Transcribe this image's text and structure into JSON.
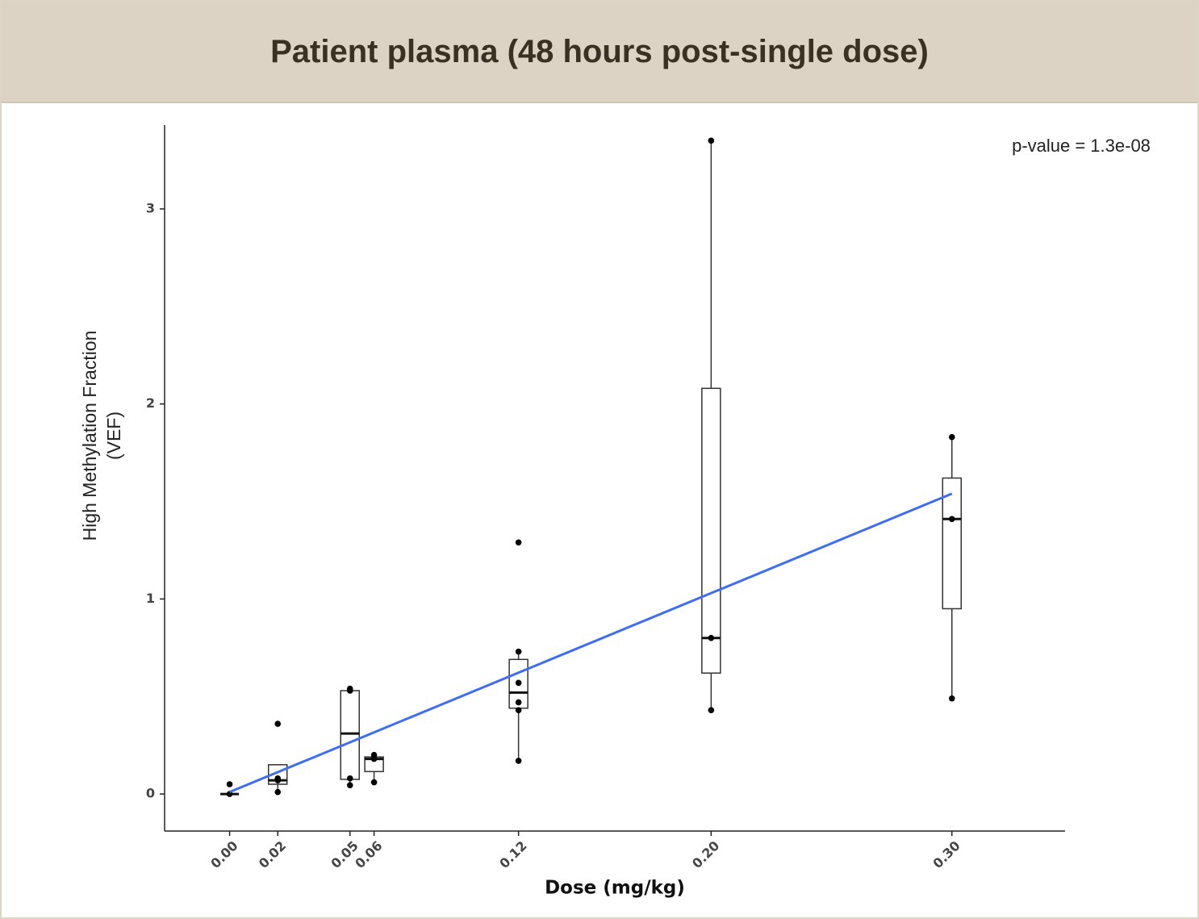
{
  "chart_data": {
    "type": "box",
    "title": "Patient plasma (48 hours post-single dose)",
    "xlabel": "Dose (mg/kg)",
    "ylabel": [
      "High Methylation Fraction",
      "(VEF)"
    ],
    "annotation": "p-value = 1.3e-08",
    "xlim": [
      -0.027,
      0.347
    ],
    "ylim": [
      -0.19,
      3.43
    ],
    "xticks": [
      {
        "value": 0.0,
        "label": "0.00"
      },
      {
        "value": 0.02,
        "label": "0.02"
      },
      {
        "value": 0.05,
        "label": "0.05"
      },
      {
        "value": 0.06,
        "label": "0.06"
      },
      {
        "value": 0.12,
        "label": "0.12"
      },
      {
        "value": 0.2,
        "label": "0.20"
      },
      {
        "value": 0.3,
        "label": "0.30"
      }
    ],
    "yticks": [
      0,
      1,
      2,
      3
    ],
    "box_color": "#333333",
    "point_color": "#000000",
    "boxes": [
      {
        "x": 0.0,
        "min": 0,
        "q1": 0,
        "median": 0,
        "q3": 0,
        "max": 0,
        "points": [
          0.05,
          0
        ]
      },
      {
        "x": 0.02,
        "min": 0.01,
        "q1": 0.05,
        "median": 0.07,
        "q3": 0.15,
        "max": 0.15,
        "points": [
          0.36,
          0.08,
          0.07,
          0.01
        ]
      },
      {
        "x": 0.05,
        "min": 0.045,
        "q1": 0.075,
        "median": 0.31,
        "q3": 0.53,
        "max": 0.54,
        "points": [
          0.54,
          0.53,
          0.08,
          0.045
        ]
      },
      {
        "x": 0.06,
        "min": 0.06,
        "q1": 0.115,
        "median": 0.18,
        "q3": 0.19,
        "max": 0.2,
        "points": [
          0.2,
          0.18,
          0.06
        ]
      },
      {
        "x": 0.12,
        "min": 0.17,
        "q1": 0.44,
        "median": 0.52,
        "q3": 0.69,
        "max": 0.73,
        "points": [
          1.29,
          0.73,
          0.57,
          0.47,
          0.43,
          0.17
        ]
      },
      {
        "x": 0.2,
        "min": 0.43,
        "q1": 0.62,
        "median": 0.8,
        "q3": 2.08,
        "max": 3.35,
        "points": [
          3.35,
          0.8,
          0.43
        ]
      },
      {
        "x": 0.3,
        "min": 0.49,
        "q1": 0.95,
        "median": 1.41,
        "q3": 1.62,
        "max": 1.83,
        "points": [
          1.83,
          1.41,
          0.49
        ]
      }
    ],
    "fit": {
      "x": [
        0.0,
        0.3
      ],
      "values": [
        0.01,
        1.54
      ],
      "color": "#3d6ef0"
    }
  }
}
